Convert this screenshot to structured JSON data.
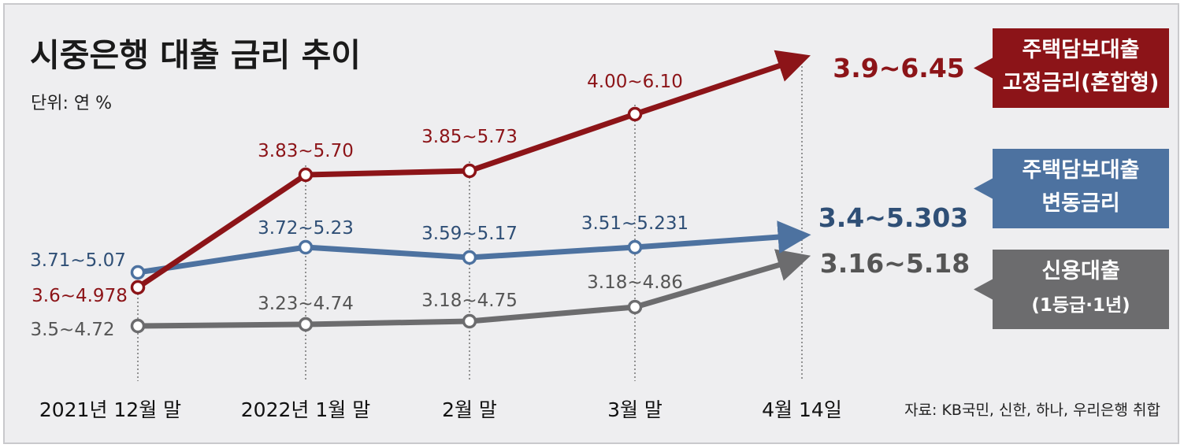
{
  "chart_data": {
    "type": "line",
    "title": "시중은행 대출 금리 추이",
    "unit": "단위: 연 %",
    "source": "자료: KB국민, 신한, 하나, 우리은행 취합",
    "categories": [
      "2021년 12월 말",
      "2022년 1월 말",
      "2월 말",
      "3월 말",
      "4월 14일"
    ],
    "series": [
      {
        "key": "fixed",
        "name": "주택담보대출 고정금리(혼합형)",
        "name_lines": [
          "주택담보대출",
          "고정금리(혼합형)"
        ],
        "color": "#8c1418",
        "values": [
          3.6,
          3.83,
          3.85,
          4.0,
          3.9
        ],
        "labels": [
          "3.6~4.978",
          "3.83~5.70",
          "3.85~5.73",
          "4.00~6.10",
          "3.9~6.45"
        ]
      },
      {
        "key": "variable",
        "name": "주택담보대출 변동금리",
        "name_lines": [
          "주택담보대출",
          "변동금리"
        ],
        "color": "#4d72a0",
        "label_color": "#2f4f76",
        "values": [
          3.71,
          3.72,
          3.59,
          3.51,
          3.4
        ],
        "labels": [
          "3.71~5.07",
          "3.72~5.23",
          "3.59~5.17",
          "3.51~5.231",
          "3.4~5.303"
        ]
      },
      {
        "key": "credit",
        "name": "신용대출 (1등급·1년)",
        "name_lines": [
          "신용대출",
          "(1등급·1년)"
        ],
        "color": "#6c6c6e",
        "label_color": "#555555",
        "values": [
          3.5,
          3.23,
          3.18,
          3.18,
          3.16
        ],
        "labels": [
          "3.5~4.72",
          "3.23~4.74",
          "3.18~4.75",
          "3.18~4.86",
          "3.16~5.18"
        ]
      }
    ]
  }
}
